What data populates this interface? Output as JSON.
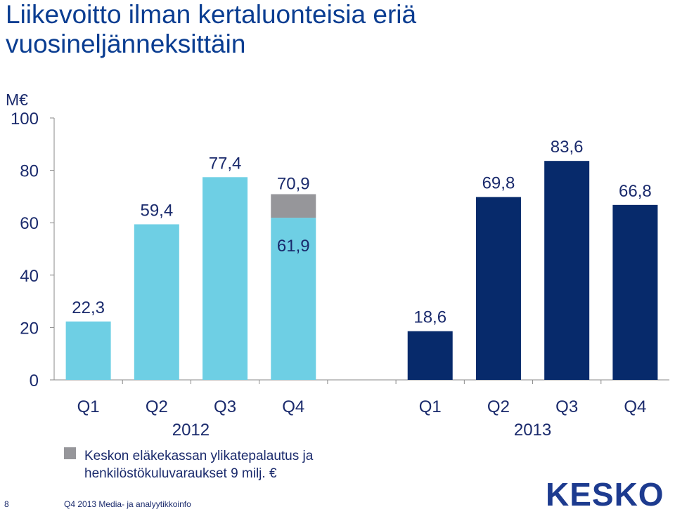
{
  "title_lines": [
    "Liikevoitto ilman kertaluonteisia eriä",
    "vuosineljänneksittäin"
  ],
  "colors": {
    "title": "#0a3d91",
    "bar_2012": "#6ecfe4",
    "bar_2013": "#072a6b",
    "bar_special": "#96969a",
    "text": "#1a2a6c"
  },
  "chart_data": {
    "type": "bar",
    "unit": "M€",
    "ylim": [
      0,
      100
    ],
    "yticks": [
      0,
      20,
      40,
      60,
      80,
      100
    ],
    "groups": [
      {
        "year": "2012",
        "quarters": [
          "Q1",
          "Q2",
          "Q3",
          "Q4"
        ],
        "values": [
          22.3,
          59.4,
          77.4,
          61.9
        ],
        "labels": [
          "22,3",
          "59,4",
          "77,4",
          "61,9"
        ]
      },
      {
        "year": "2013",
        "quarters": [
          "Q1",
          "Q2",
          "Q3",
          "Q4"
        ],
        "values": [
          18.6,
          69.8,
          83.6,
          66.8
        ],
        "labels": [
          "18,6",
          "69,8",
          "83,6",
          "66,8"
        ]
      }
    ],
    "stacked_addition": {
      "group": 0,
      "index": 3,
      "value": 9.0,
      "total": 70.9,
      "total_label": "70,9"
    },
    "legend": {
      "lines": [
        "Keskon eläkekassan ylikatepalautus ja",
        "henkilöstökuluvaraukset 9 milj. €"
      ]
    }
  },
  "footer": {
    "page_number": "8",
    "text": "Q4 2013   Media- ja analyytikkoinfo"
  },
  "logo_text": "KESKO"
}
